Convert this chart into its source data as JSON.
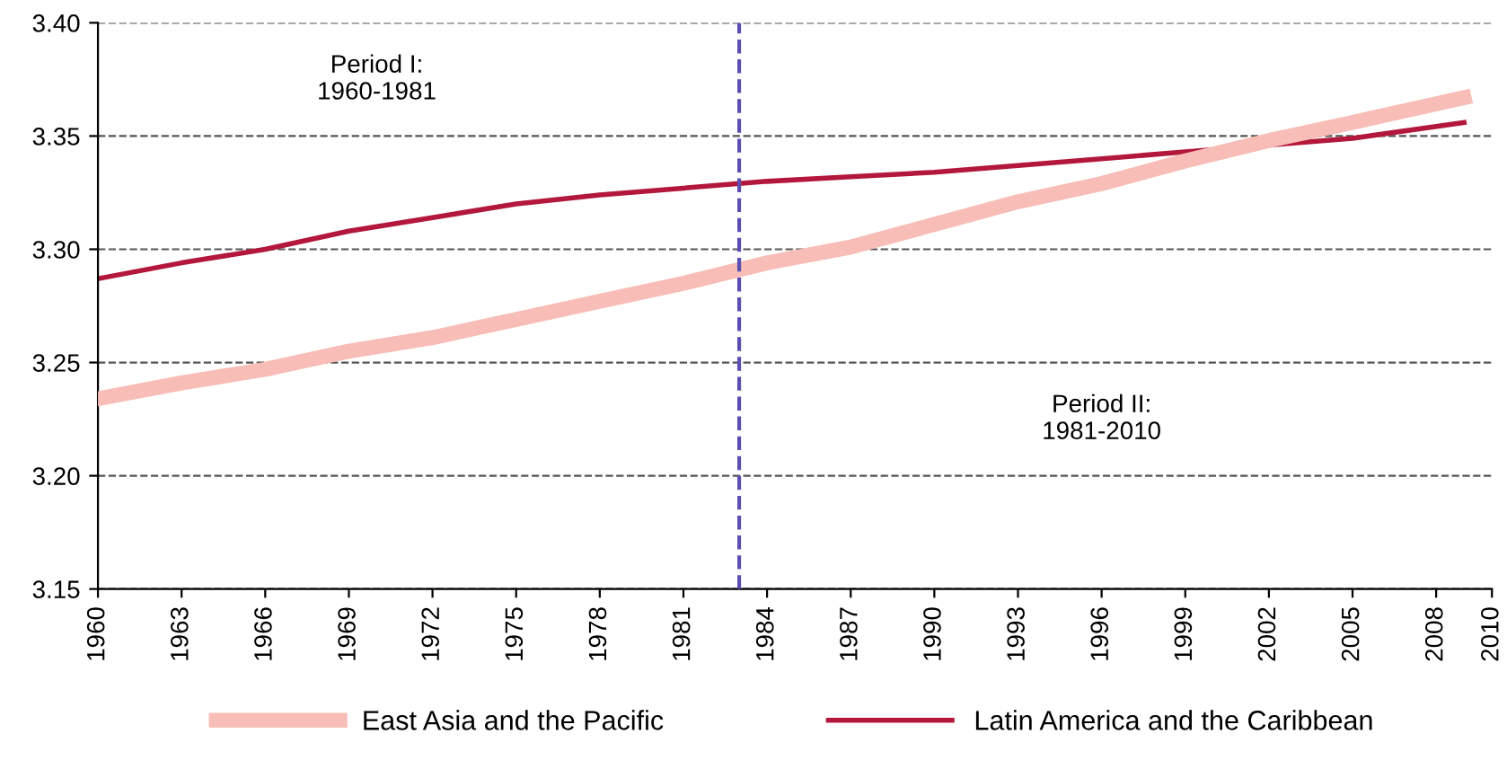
{
  "chart_data": {
    "type": "line",
    "x": [
      1960,
      1963,
      1966,
      1969,
      1972,
      1975,
      1978,
      1981,
      1984,
      1987,
      1990,
      1993,
      1996,
      1999,
      2002,
      2005,
      2009
    ],
    "series": [
      {
        "name": "East Asia and the Pacific",
        "color": "#f7bdb6",
        "values": [
          3.234,
          3.241,
          3.247,
          3.255,
          3.261,
          3.269,
          3.277,
          3.285,
          3.294,
          3.301,
          3.311,
          3.321,
          3.329,
          3.339,
          3.348,
          3.356,
          3.367
        ]
      },
      {
        "name": "Latin America and the Caribbean",
        "color": "#b3183c",
        "values": [
          3.287,
          3.294,
          3.3,
          3.308,
          3.314,
          3.32,
          3.324,
          3.327,
          3.33,
          3.332,
          3.334,
          3.337,
          3.34,
          3.343,
          3.346,
          3.349,
          3.356
        ]
      }
    ],
    "xlim": [
      1960,
      2010
    ],
    "xticks": [
      1960,
      1963,
      1966,
      1969,
      1972,
      1975,
      1978,
      1981,
      1984,
      1987,
      1990,
      1993,
      1996,
      1999,
      2002,
      2005,
      2008,
      2010
    ],
    "ylim": [
      3.15,
      3.4
    ],
    "yticks": [
      {
        "value": 3.15,
        "label": "3.15"
      },
      {
        "value": 3.2,
        "label": "3.20"
      },
      {
        "value": 3.25,
        "label": "3.25"
      },
      {
        "value": 3.3,
        "label": "3.30"
      },
      {
        "value": 3.35,
        "label": "3.35"
      },
      {
        "value": 3.4,
        "label": "3.40"
      }
    ],
    "grid": "y",
    "legend": "bottom",
    "marker": "none",
    "line_style": "solid",
    "ref_lines": [
      {
        "axis": "x",
        "value": 1983,
        "label": null,
        "color": "#5a4fb0",
        "line_style": "dashed"
      }
    ],
    "annotations": [
      "Period I:\n1960-1981",
      "Period II:\n1981-2010"
    ]
  }
}
